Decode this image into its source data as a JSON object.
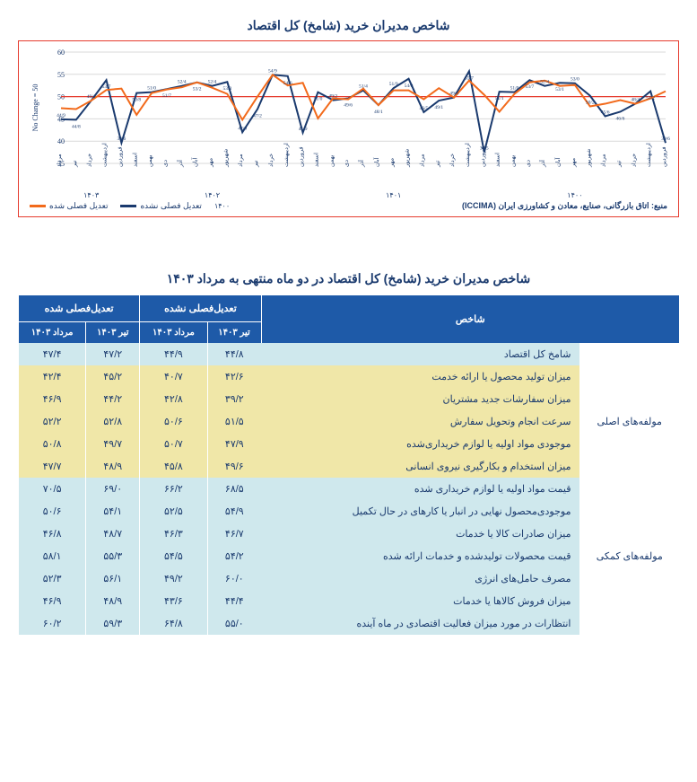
{
  "chart": {
    "title": "شاخص مدیران خرید (شامخ) کل اقتصاد",
    "type": "line",
    "ylabel": "50 = No Change",
    "ylim": [
      35,
      60
    ],
    "ytick_step": 5,
    "yticks": [
      35,
      40,
      45,
      50,
      55,
      60
    ],
    "background_color": "#ffffff",
    "grid_color": "#d9d9d9",
    "border_color": "#e63b2e",
    "line_width": 2,
    "legend_items": [
      {
        "label": "تعدیل فصلی نشده",
        "color": "#1a3a6e"
      },
      {
        "label": "تعدیل فصلی شده",
        "color": "#f26a1b"
      }
    ],
    "legend_year": "۱۴۰۰",
    "source": "منبع: اتاق بازرگانی، صنایع، معادن و کشاورزی ایران (ICCIMA)",
    "x_categories": [
      "فروردین",
      "اردیبهشت",
      "خرداد",
      "تیر",
      "مرداد",
      "شهریور",
      "مهر",
      "آبان",
      "آذر",
      "دی",
      "بهمن",
      "اسفند",
      "فروردین",
      "اردیبهشت",
      "خرداد",
      "تیر",
      "مرداد",
      "شهریور",
      "مهر",
      "آبان",
      "آذر",
      "دی",
      "بهمن",
      "اسفند",
      "فروردین",
      "اردیبهشت",
      "خرداد",
      "تیر",
      "مرداد",
      "شهریور",
      "مهر",
      "آبان",
      "آذر",
      "دی",
      "بهمن",
      "اسفند",
      "فروردین",
      "اردیبهشت",
      "خرداد",
      "تیر",
      "مرداد"
    ],
    "year_markers": [
      {
        "pos": 6,
        "label": "۱۴۰۰"
      },
      {
        "pos": 18,
        "label": "۱۴۰۱"
      },
      {
        "pos": 30,
        "label": "۱۴۰۲"
      },
      {
        "pos": 38,
        "label": "۱۴۰۳"
      }
    ],
    "series": {
      "not_seasonal": {
        "color": "#1a3a6e",
        "values": [
          39.6,
          51.2,
          48.4,
          46.6,
          45.6,
          50.2,
          53.0,
          53.1,
          52.4,
          53.7,
          51.0,
          51.1,
          37.5,
          55.7,
          49.8,
          49.1,
          46.5,
          54.0,
          51.9,
          48.1,
          51.4,
          49.6,
          49.2,
          51.0,
          41.9,
          54.6,
          54.9,
          47.2,
          42.0,
          53.3,
          52.4,
          53.2,
          52.4,
          51.7,
          51.0,
          50.8,
          39.6,
          53.7,
          49.1,
          44.8,
          44.9
        ]
      },
      "seasonal": {
        "color": "#f26a1b",
        "values": [
          51.2,
          49.6,
          48.4,
          49.2,
          48.4,
          47.8,
          52.6,
          52.4,
          53.6,
          53.2,
          50.6,
          46.6,
          50.4,
          53.6,
          49.8,
          51.9,
          49.4,
          51.4,
          51.4,
          48.1,
          51.8,
          49.4,
          49.6,
          45.1,
          53.1,
          52.5,
          54.9,
          50.0,
          44.8,
          50.6,
          52.0,
          53.2,
          52.1,
          51.6,
          50.8,
          45.9,
          51.8,
          51.5,
          49.1,
          47.2,
          47.4
        ]
      }
    }
  },
  "table": {
    "title": "شاخص مدیران خرید (شامخ) کل اقتصاد در دو ماه منتهی به مرداد ۱۴۰۳",
    "header": {
      "index": "شاخص",
      "not_seasonal": "تعدیل‌فصلی نشده",
      "seasonal": "تعدیل‌فصلی شده",
      "sub": [
        "تیر ۱۴۰۳",
        "مرداد ۱۴۰۳",
        "تیر ۱۴۰۳",
        "مرداد ۱۴۰۳"
      ]
    },
    "groups": [
      {
        "label": "",
        "rows": [
          {
            "name": "شامخ کل اقتصاد",
            "class": "row-blue",
            "vals": [
              "۴۴/۸",
              "۴۴/۹",
              "۴۷/۲",
              "۴۷/۴"
            ]
          }
        ]
      },
      {
        "label": "مولفه‌های اصلی",
        "rows": [
          {
            "name": "میزان تولید محصول یا ارائه خدمت",
            "class": "row-yellow",
            "vals": [
              "۴۲/۶",
              "۴۰/۷",
              "۴۵/۲",
              "۴۲/۴"
            ]
          },
          {
            "name": "میزان سفارشات جدید مشتریان",
            "class": "row-yellow",
            "vals": [
              "۳۹/۲",
              "۴۲/۸",
              "۴۴/۲",
              "۴۶/۹"
            ]
          },
          {
            "name": "سرعت انجام وتحویل سفارش",
            "class": "row-yellow",
            "vals": [
              "۵۱/۵",
              "۵۰/۶",
              "۵۲/۸",
              "۵۲/۲"
            ]
          },
          {
            "name": "موجودی مواد اولیه یا لوازم خریداری‌شده",
            "class": "row-yellow",
            "vals": [
              "۴۷/۹",
              "۵۰/۷",
              "۴۹/۷",
              "۵۰/۸"
            ]
          },
          {
            "name": "میزان استخدام و بکارگیری نیروی انسانی",
            "class": "row-yellow",
            "vals": [
              "۴۹/۶",
              "۴۵/۸",
              "۴۸/۹",
              "۴۷/۷"
            ]
          }
        ]
      },
      {
        "label": "مولفه‌های کمکی",
        "rows": [
          {
            "name": "قیمت مواد اولیه یا لوازم خریداری شده",
            "class": "row-blue",
            "vals": [
              "۶۸/۵",
              "۶۶/۲",
              "۶۹/۰",
              "۷۰/۵"
            ]
          },
          {
            "name": "موجودی‌محصول نهایی در انبار یا کارهای در حال تکمیل",
            "class": "row-blue",
            "vals": [
              "۵۴/۹",
              "۵۲/۵",
              "۵۴/۱",
              "۵۰/۶"
            ]
          },
          {
            "name": "میزان صادرات کالا یا خدمات",
            "class": "row-blue",
            "vals": [
              "۴۶/۷",
              "۴۶/۳",
              "۴۸/۷",
              "۴۶/۸"
            ]
          },
          {
            "name": "قیمت محصولات تولیدشده و خدمات ارائه شده",
            "class": "row-blue",
            "vals": [
              "۵۴/۲",
              "۵۴/۵",
              "۵۵/۳",
              "۵۸/۱"
            ]
          },
          {
            "name": "مصرف حامل‌های انرژی",
            "class": "row-blue",
            "vals": [
              "۶۰/۰",
              "۴۹/۲",
              "۵۶/۱",
              "۵۲/۳"
            ]
          },
          {
            "name": "میزان فروش کالاها یا خدمات",
            "class": "row-blue",
            "vals": [
              "۴۴/۴",
              "۴۳/۶",
              "۴۸/۹",
              "۴۶/۹"
            ]
          },
          {
            "name": "انتظارات در مورد میزان فعالیت اقتصادی در ماه آینده",
            "class": "row-blue",
            "vals": [
              "۵۵/۰",
              "۶۴/۸",
              "۵۹/۳",
              "۶۰/۲"
            ]
          }
        ]
      }
    ]
  }
}
